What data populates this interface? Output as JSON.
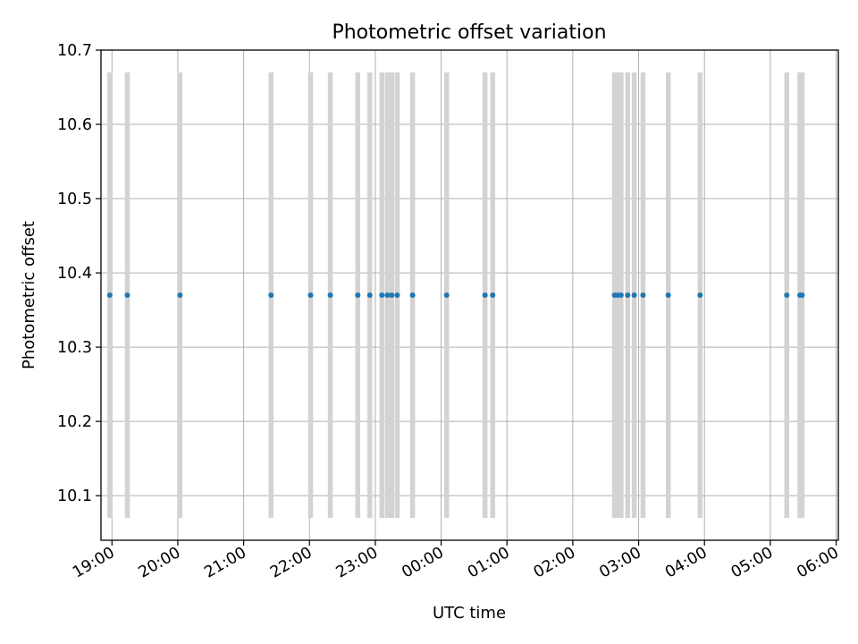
{
  "chart_data": {
    "type": "scatter",
    "title": "Photometric offset variation",
    "xlabel": "UTC time",
    "ylabel": "Photometric offset",
    "x_axis_kind": "time",
    "xlim": [
      "18:50",
      "06:02"
    ],
    "ylim": [
      10.04,
      10.7
    ],
    "x_ticks": [
      "19:00",
      "20:00",
      "21:00",
      "22:00",
      "23:00",
      "00:00",
      "01:00",
      "02:00",
      "03:00",
      "04:00",
      "05:00",
      "06:00"
    ],
    "y_ticks": [
      "10.1",
      "10.2",
      "10.3",
      "10.4",
      "10.5",
      "10.6",
      "10.7"
    ],
    "grid": true,
    "legend": false,
    "y_value": 10.37,
    "error_bar_range": [
      10.07,
      10.67
    ],
    "times": [
      "18:58",
      "19:14",
      "20:02",
      "21:25",
      "22:01",
      "22:19",
      "22:44",
      "22:55",
      "23:06",
      "23:11",
      "23:15",
      "23:20",
      "23:34",
      "24:05",
      "24:40",
      "24:47",
      "26:38",
      "26:41",
      "26:44",
      "26:50",
      "26:56",
      "27:04",
      "27:27",
      "27:56",
      "29:15",
      "29:27",
      "29:29"
    ],
    "colors": {
      "points": "#1f77b4",
      "error_bars": "#d3d3d3",
      "grid": "#b0b0b0",
      "axes": "#000000"
    }
  }
}
